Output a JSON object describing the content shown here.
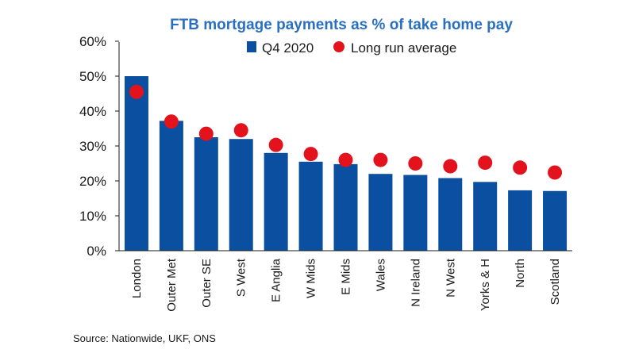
{
  "chart_data": {
    "type": "bar",
    "title": "FTB mortgage payments as % of take home pay",
    "categories": [
      "London",
      "Outer Met",
      "Outer SE",
      "S West",
      "E Anglia",
      "W Mids",
      "E Mids",
      "Wales",
      "N Ireland",
      "N West",
      "Yorks & H",
      "North",
      "Scotland"
    ],
    "series": [
      {
        "name": "Q4 2020",
        "kind": "bar",
        "color": "#0a4fa0",
        "values": [
          50.0,
          37.2,
          32.5,
          32.0,
          28.0,
          25.5,
          24.8,
          22.0,
          21.7,
          20.8,
          19.7,
          17.3,
          17.1
        ]
      },
      {
        "name": "Long run average",
        "kind": "marker",
        "color": "#e3131d",
        "values": [
          45.5,
          37.0,
          33.5,
          34.5,
          30.3,
          27.7,
          26.0,
          26.0,
          25.0,
          24.2,
          25.2,
          23.8,
          22.4
        ]
      }
    ],
    "yticks": [
      "0%",
      "10%",
      "20%",
      "30%",
      "40%",
      "50%",
      "60%"
    ],
    "ylim": [
      0,
      60
    ],
    "xlabel": "",
    "ylabel": "",
    "legend": "top",
    "grid": false
  },
  "source": "Source: Nationwide, UKF, ONS"
}
